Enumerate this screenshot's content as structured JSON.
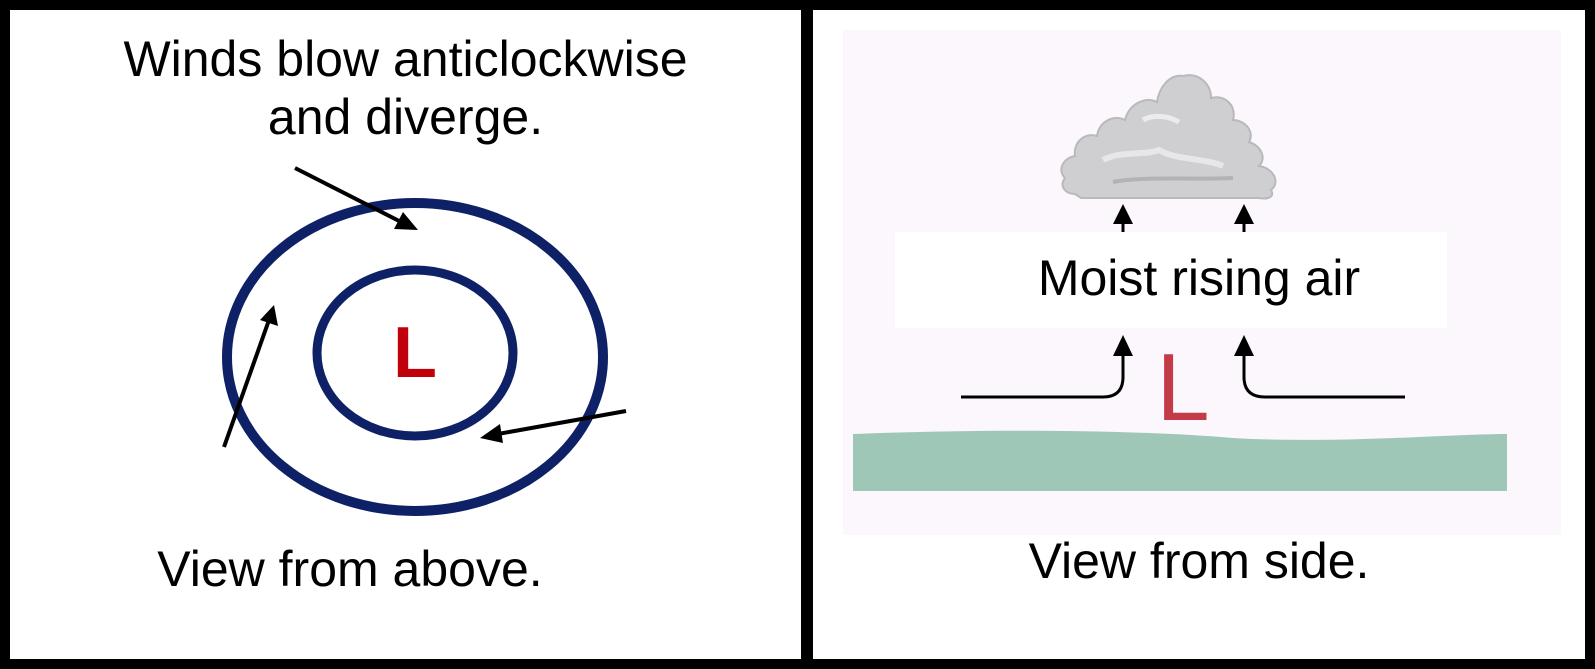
{
  "left_panel": {
    "caption_top_line1": "Winds blow anticlockwise",
    "caption_top_line2": "and diverge.",
    "low_label": "L",
    "caption_bottom": "View from above."
  },
  "right_panel": {
    "rising_label": "Moist rising air",
    "low_label": "L",
    "caption_bottom": "View from side."
  },
  "colors": {
    "isobar": "#0f2166",
    "low_marker": "#c0000b",
    "ground": "#9fc7b8",
    "background_tint": "#fbf7fd",
    "arrow": "#000000"
  }
}
